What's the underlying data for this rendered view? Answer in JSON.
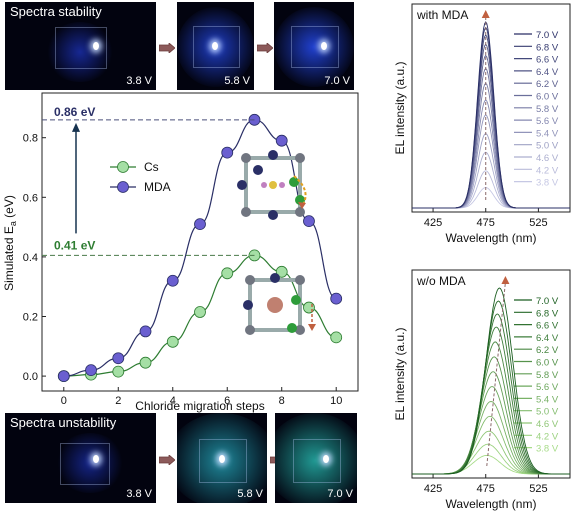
{
  "photos_top": {
    "title": "Spectra stability",
    "labels": [
      "3.8 V",
      "5.8 V",
      "7.0 V"
    ]
  },
  "photos_bottom": {
    "title": "Spectra unstability",
    "labels": [
      "3.8 V",
      "5.8 V",
      "7.0 V"
    ]
  },
  "annotations": {
    "mda_peak": "0.86 eV",
    "cs_peak": "0.41 eV"
  },
  "chart_data": [
    {
      "type": "line",
      "xlabel": "Chloride migration steps",
      "ylabel": "Simulated E",
      "ylabel_sub": "a",
      "ylabel_unit": "(eV)",
      "xlim": [
        -0.8,
        10.8
      ],
      "ylim": [
        -0.05,
        0.95
      ],
      "xticks": [
        0,
        2,
        4,
        6,
        8,
        10
      ],
      "yticks": [
        0.0,
        0.2,
        0.4,
        0.6,
        0.8
      ],
      "x": [
        0,
        1,
        2,
        3,
        4,
        5,
        6,
        7,
        8,
        9,
        10
      ],
      "series": [
        {
          "name": "Cs",
          "color": "#2e7d32",
          "fill": "#a5dfa5",
          "values": [
            0.0,
            0.005,
            0.015,
            0.045,
            0.115,
            0.215,
            0.345,
            0.405,
            0.35,
            0.23,
            0.13
          ]
        },
        {
          "name": "MDA",
          "color": "#2a2f66",
          "fill": "#6a5fd0",
          "values": [
            0.0,
            0.02,
            0.06,
            0.15,
            0.32,
            0.51,
            0.75,
            0.86,
            0.79,
            0.52,
            0.26
          ]
        }
      ],
      "legend_position": "center-left"
    },
    {
      "type": "line",
      "title": "with MDA",
      "xlabel": "Wavelength (nm)",
      "ylabel": "EL intensity (a.u.)",
      "xticks": [
        425,
        475,
        525
      ],
      "xlim": [
        405,
        555
      ],
      "peak_nm": 475,
      "fwhm_nm": 18,
      "series_labels": [
        "7.0 V",
        "6.8 V",
        "6.6 V",
        "6.4 V",
        "6.2 V",
        "6.0 V",
        "5.8 V",
        "5.6 V",
        "5.4 V",
        "5.0 V",
        "4.6 V",
        "4.2 V",
        "3.8 V"
      ],
      "relative_peaks": [
        1.0,
        0.97,
        0.93,
        0.88,
        0.82,
        0.75,
        0.67,
        0.58,
        0.5,
        0.4,
        0.3,
        0.2,
        0.11
      ],
      "color_from": "#2a2f66",
      "color_to": "#c6c8e4"
    },
    {
      "type": "line",
      "title": "w/o MDA",
      "xlabel": "Wavelength (nm)",
      "ylabel": "EL intensity (a.u.)",
      "xticks": [
        425,
        475,
        525
      ],
      "xlim": [
        405,
        555
      ],
      "peak_start_nm": 476,
      "peak_end_nm": 488,
      "fwhm_nm": 30,
      "series_labels": [
        "7.0 V",
        "6.8 V",
        "6.6 V",
        "6.4 V",
        "6.2 V",
        "6.0 V",
        "5.8 V",
        "5.6 V",
        "5.4 V",
        "5.0 V",
        "4.6 V",
        "4.2 V",
        "3.8 V"
      ],
      "relative_peaks": [
        1.0,
        0.93,
        0.86,
        0.79,
        0.71,
        0.63,
        0.55,
        0.47,
        0.39,
        0.31,
        0.23,
        0.16,
        0.1
      ],
      "color_from": "#1b5e20",
      "color_to": "#a8dc8a"
    }
  ]
}
